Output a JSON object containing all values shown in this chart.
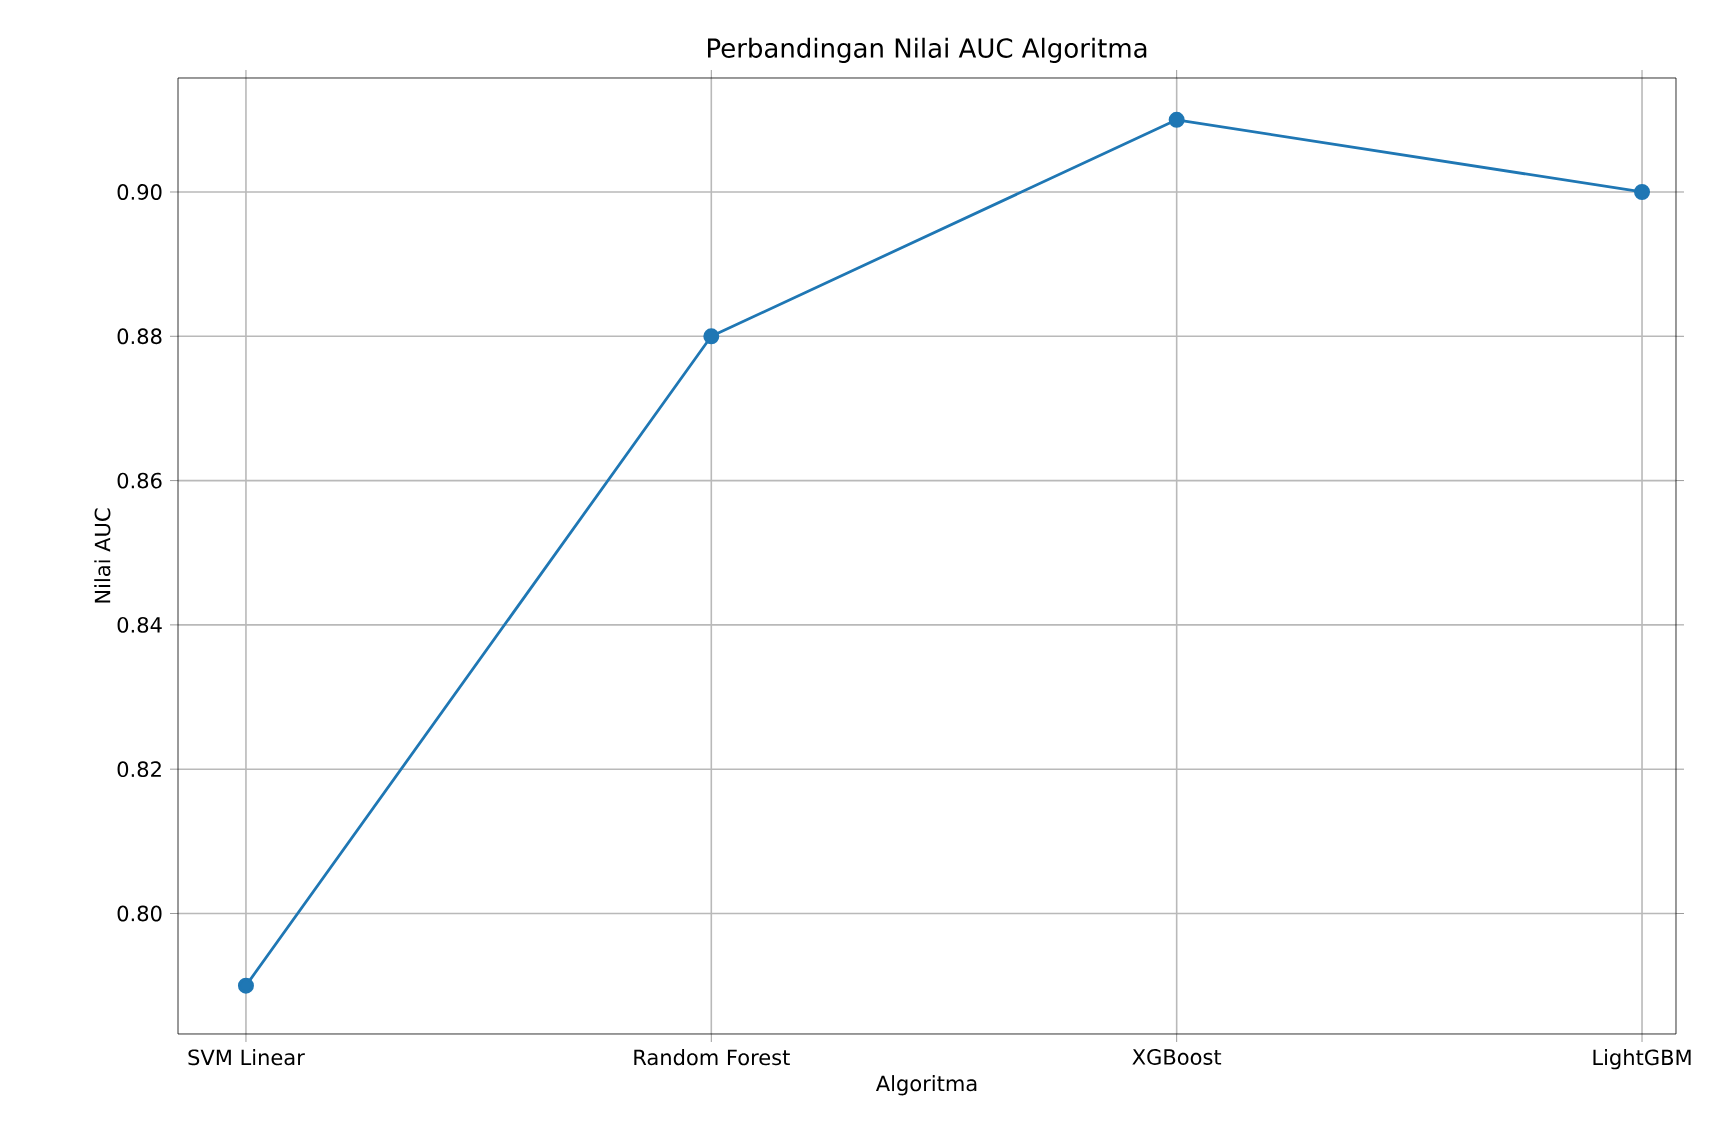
{
  "chart_data": {
    "type": "line",
    "title": "Perbandingan Nilai AUC Algoritma",
    "xlabel": "Algoritma",
    "ylabel": "Nilai AUC",
    "categories": [
      "SVM Linear",
      "Random Forest",
      "XGBoost",
      "LightGBM"
    ],
    "values": [
      0.79,
      0.88,
      0.91,
      0.9
    ],
    "color": "#1f77b4",
    "ylim": [
      0.7833,
      0.9158
    ],
    "yticks": [
      {
        "value": 0.8,
        "label": "0.80"
      },
      {
        "value": 0.82,
        "label": "0.82"
      },
      {
        "value": 0.84,
        "label": "0.84"
      },
      {
        "value": 0.86,
        "label": "0.86"
      },
      {
        "value": 0.88,
        "label": "0.88"
      },
      {
        "value": 0.9,
        "label": "0.90"
      }
    ],
    "grid": true,
    "marker": "circle"
  }
}
